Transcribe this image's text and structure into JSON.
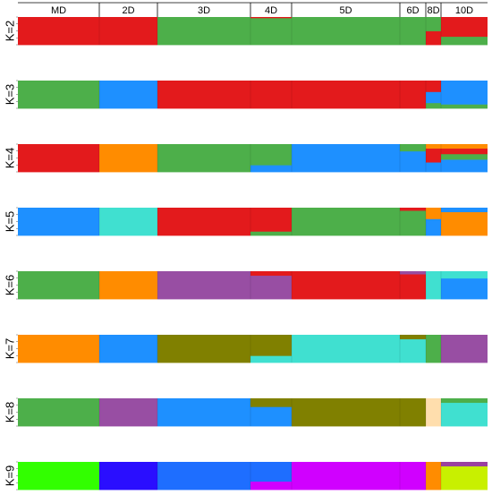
{
  "chart_data": {
    "type": "structure-barplot",
    "populations": [
      "MD",
      "2D",
      "3D",
      "4D",
      "5D",
      "6D",
      "8D",
      "10D"
    ],
    "rows": [
      {
        "label": "K=2",
        "segments": [
          {
            "pop": "MD",
            "colors": [
              "#e31a1c"
            ],
            "proportions": [
              1.0
            ]
          },
          {
            "pop": "2D",
            "colors": [
              "#e31a1c"
            ],
            "proportions": [
              1.0
            ]
          },
          {
            "pop": "3D",
            "colors": [
              "#4daf4a"
            ],
            "proportions": [
              1.0
            ]
          },
          {
            "pop": "4D",
            "colors": [
              "#4daf4a",
              "#e31a1c"
            ],
            "proportions": [
              0.97,
              0.03
            ]
          },
          {
            "pop": "5D",
            "colors": [
              "#4daf4a"
            ],
            "proportions": [
              1.0
            ]
          },
          {
            "pop": "6D",
            "colors": [
              "#4daf4a"
            ],
            "proportions": [
              1.0
            ]
          },
          {
            "pop": "8D",
            "colors": [
              "#e31a1c",
              "#4daf4a"
            ],
            "proportions": [
              0.5,
              0.5
            ]
          },
          {
            "pop": "10D",
            "colors": [
              "#4daf4a",
              "#e31a1c"
            ],
            "proportions": [
              0.3,
              0.7
            ]
          }
        ]
      },
      {
        "label": "K=3",
        "segments": [
          {
            "pop": "MD",
            "colors": [
              "#4daf4a"
            ],
            "proportions": [
              1.0
            ]
          },
          {
            "pop": "2D",
            "colors": [
              "#1e90ff"
            ],
            "proportions": [
              1.0
            ]
          },
          {
            "pop": "3D",
            "colors": [
              "#e31a1c"
            ],
            "proportions": [
              1.0
            ]
          },
          {
            "pop": "4D",
            "colors": [
              "#e31a1c"
            ],
            "proportions": [
              1.0
            ]
          },
          {
            "pop": "5D",
            "colors": [
              "#e31a1c"
            ],
            "proportions": [
              1.0
            ]
          },
          {
            "pop": "6D",
            "colors": [
              "#e31a1c"
            ],
            "proportions": [
              1.0
            ]
          },
          {
            "pop": "8D",
            "colors": [
              "#4daf4a",
              "#1e90ff",
              "#e31a1c"
            ],
            "proportions": [
              0.2,
              0.4,
              0.4
            ]
          },
          {
            "pop": "10D",
            "colors": [
              "#4daf4a",
              "#1e90ff"
            ],
            "proportions": [
              0.15,
              0.85
            ]
          }
        ]
      },
      {
        "label": "K=4",
        "segments": [
          {
            "pop": "MD",
            "colors": [
              "#e31a1c"
            ],
            "proportions": [
              1.0
            ]
          },
          {
            "pop": "2D",
            "colors": [
              "#ff8c00"
            ],
            "proportions": [
              1.0
            ]
          },
          {
            "pop": "3D",
            "colors": [
              "#4daf4a"
            ],
            "proportions": [
              1.0
            ]
          },
          {
            "pop": "4D",
            "colors": [
              "#1e90ff",
              "#4daf4a"
            ],
            "proportions": [
              0.25,
              0.75
            ]
          },
          {
            "pop": "5D",
            "colors": [
              "#1e90ff"
            ],
            "proportions": [
              1.0
            ]
          },
          {
            "pop": "6D",
            "colors": [
              "#1e90ff",
              "#4daf4a"
            ],
            "proportions": [
              0.75,
              0.25
            ]
          },
          {
            "pop": "8D",
            "colors": [
              "#1e90ff",
              "#e31a1c",
              "#ff8c00"
            ],
            "proportions": [
              0.35,
              0.5,
              0.15
            ]
          },
          {
            "pop": "10D",
            "colors": [
              "#1e90ff",
              "#4daf4a",
              "#e31a1c",
              "#ff8c00"
            ],
            "proportions": [
              0.45,
              0.2,
              0.2,
              0.15
            ]
          }
        ]
      },
      {
        "label": "K=5",
        "segments": [
          {
            "pop": "MD",
            "colors": [
              "#1e90ff"
            ],
            "proportions": [
              1.0
            ]
          },
          {
            "pop": "2D",
            "colors": [
              "#40e0d0"
            ],
            "proportions": [
              1.0
            ]
          },
          {
            "pop": "3D",
            "colors": [
              "#e31a1c"
            ],
            "proportions": [
              1.0
            ]
          },
          {
            "pop": "4D",
            "colors": [
              "#4daf4a",
              "#e31a1c"
            ],
            "proportions": [
              0.15,
              0.85
            ]
          },
          {
            "pop": "5D",
            "colors": [
              "#4daf4a"
            ],
            "proportions": [
              1.0
            ]
          },
          {
            "pop": "6D",
            "colors": [
              "#4daf4a",
              "#e31a1c"
            ],
            "proportions": [
              0.9,
              0.1
            ]
          },
          {
            "pop": "8D",
            "colors": [
              "#1e90ff",
              "#ff8c00"
            ],
            "proportions": [
              0.6,
              0.4
            ]
          },
          {
            "pop": "10D",
            "colors": [
              "#ff8c00",
              "#1e90ff"
            ],
            "proportions": [
              0.85,
              0.15
            ]
          }
        ]
      },
      {
        "label": "K=6",
        "segments": [
          {
            "pop": "MD",
            "colors": [
              "#4daf4a"
            ],
            "proportions": [
              1.0
            ]
          },
          {
            "pop": "2D",
            "colors": [
              "#ff8c00"
            ],
            "proportions": [
              1.0
            ]
          },
          {
            "pop": "3D",
            "colors": [
              "#984ea3"
            ],
            "proportions": [
              1.0
            ]
          },
          {
            "pop": "4D",
            "colors": [
              "#984ea3",
              "#e31a1c"
            ],
            "proportions": [
              0.85,
              0.15
            ]
          },
          {
            "pop": "5D",
            "colors": [
              "#e31a1c"
            ],
            "proportions": [
              1.0
            ]
          },
          {
            "pop": "6D",
            "colors": [
              "#e31a1c",
              "#984ea3"
            ],
            "proportions": [
              0.9,
              0.1
            ]
          },
          {
            "pop": "8D",
            "colors": [
              "#40e0d0"
            ],
            "proportions": [
              1.0
            ]
          },
          {
            "pop": "10D",
            "colors": [
              "#1e90ff",
              "#40e0d0"
            ],
            "proportions": [
              0.75,
              0.25
            ]
          }
        ]
      },
      {
        "label": "K=7",
        "segments": [
          {
            "pop": "MD",
            "colors": [
              "#ff8c00"
            ],
            "proportions": [
              1.0
            ]
          },
          {
            "pop": "2D",
            "colors": [
              "#1e90ff"
            ],
            "proportions": [
              1.0
            ]
          },
          {
            "pop": "3D",
            "colors": [
              "#808000"
            ],
            "proportions": [
              1.0
            ]
          },
          {
            "pop": "4D",
            "colors": [
              "#40e0d0",
              "#808000"
            ],
            "proportions": [
              0.25,
              0.75
            ]
          },
          {
            "pop": "5D",
            "colors": [
              "#40e0d0"
            ],
            "proportions": [
              1.0
            ]
          },
          {
            "pop": "6D",
            "colors": [
              "#40e0d0",
              "#808000"
            ],
            "proportions": [
              0.85,
              0.15
            ]
          },
          {
            "pop": "8D",
            "colors": [
              "#4daf4a"
            ],
            "proportions": [
              1.0
            ]
          },
          {
            "pop": "10D",
            "colors": [
              "#984ea3"
            ],
            "proportions": [
              1.0
            ]
          }
        ]
      },
      {
        "label": "K=8",
        "segments": [
          {
            "pop": "MD",
            "colors": [
              "#4daf4a"
            ],
            "proportions": [
              1.0
            ]
          },
          {
            "pop": "2D",
            "colors": [
              "#984ea3"
            ],
            "proportions": [
              1.0
            ]
          },
          {
            "pop": "3D",
            "colors": [
              "#1e90ff"
            ],
            "proportions": [
              1.0
            ]
          },
          {
            "pop": "4D",
            "colors": [
              "#1e90ff",
              "#808000"
            ],
            "proportions": [
              0.7,
              0.3
            ]
          },
          {
            "pop": "5D",
            "colors": [
              "#808000"
            ],
            "proportions": [
              1.0
            ]
          },
          {
            "pop": "6D",
            "colors": [
              "#808000"
            ],
            "proportions": [
              1.0
            ]
          },
          {
            "pop": "8D",
            "colors": [
              "#ffdead"
            ],
            "proportions": [
              1.0
            ]
          },
          {
            "pop": "10D",
            "colors": [
              "#40e0d0",
              "#4daf4a"
            ],
            "proportions": [
              0.85,
              0.15
            ]
          }
        ]
      },
      {
        "label": "K=9",
        "segments": [
          {
            "pop": "MD",
            "colors": [
              "#32ff00"
            ],
            "proportions": [
              1.0
            ]
          },
          {
            "pop": "2D",
            "colors": [
              "#2a0eff"
            ],
            "proportions": [
              1.0
            ]
          },
          {
            "pop": "3D",
            "colors": [
              "#1e6eff"
            ],
            "proportions": [
              1.0
            ]
          },
          {
            "pop": "4D",
            "colors": [
              "#d000ff",
              "#1e6eff"
            ],
            "proportions": [
              0.3,
              0.7
            ]
          },
          {
            "pop": "5D",
            "colors": [
              "#d000ff"
            ],
            "proportions": [
              1.0
            ]
          },
          {
            "pop": "6D",
            "colors": [
              "#d000ff"
            ],
            "proportions": [
              1.0
            ]
          },
          {
            "pop": "8D",
            "colors": [
              "#ff8c00"
            ],
            "proportions": [
              1.0
            ]
          },
          {
            "pop": "10D",
            "colors": [
              "#c8f000",
              "#9a40a0"
            ],
            "proportions": [
              0.85,
              0.15
            ]
          }
        ]
      }
    ]
  }
}
